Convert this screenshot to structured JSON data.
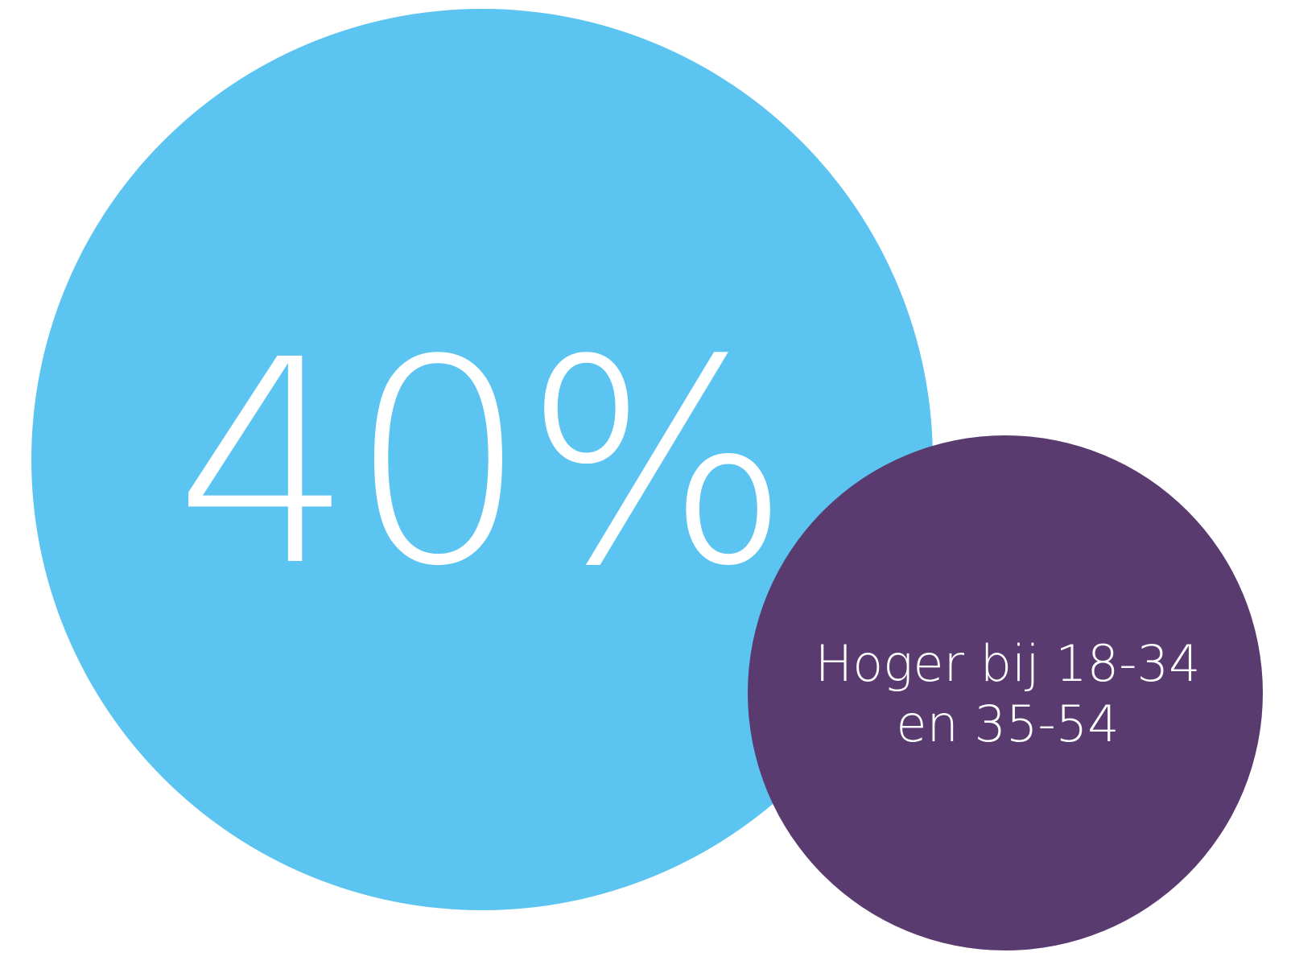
{
  "stat": {
    "value": "40%"
  },
  "callout": {
    "lines": [
      "Hoger bij 18-34",
      "en 35-54"
    ]
  }
}
